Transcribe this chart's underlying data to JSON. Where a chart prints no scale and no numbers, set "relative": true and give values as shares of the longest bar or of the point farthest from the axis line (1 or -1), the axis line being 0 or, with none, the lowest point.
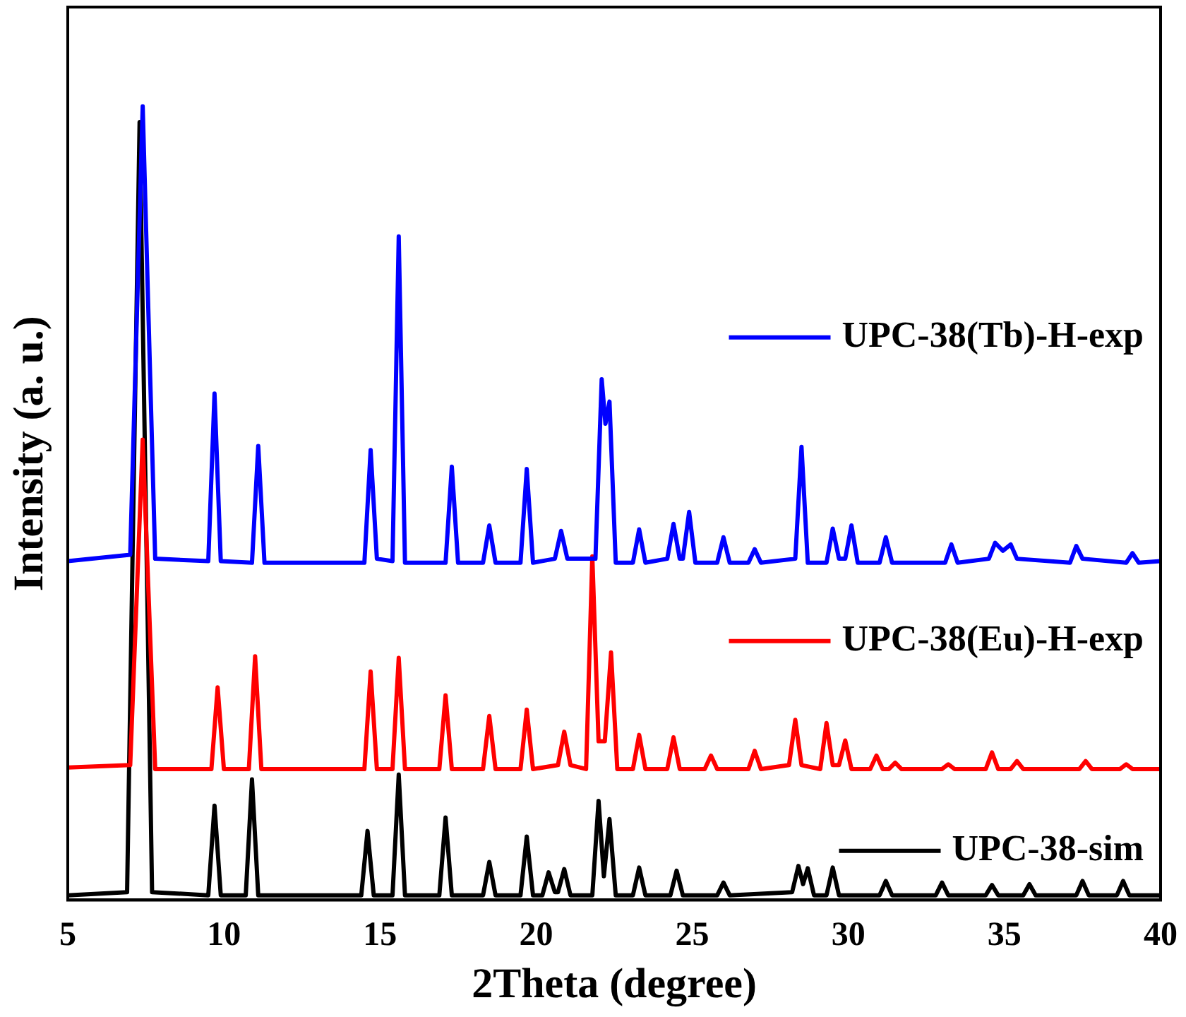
{
  "chart_data": {
    "type": "line",
    "relative": true,
    "xlabel": "2Theta (degree)",
    "ylabel": "Intensity (a. u.)",
    "xlim": [
      5,
      40
    ],
    "xticks": [
      5,
      10,
      15,
      20,
      25,
      30,
      35,
      40
    ],
    "grid": false,
    "legend": "right",
    "marker": "none",
    "line_style": "solid",
    "series": [
      {
        "name": "UPC-38(Tb)-H-exp",
        "color": "#0000ff",
        "x": [
          5,
          7.0,
          7.4,
          7.8,
          9.5,
          9.7,
          9.9,
          10.9,
          11.1,
          11.3,
          14.5,
          14.7,
          14.9,
          15.4,
          15.6,
          15.8,
          17.1,
          17.3,
          17.5,
          18.3,
          18.5,
          18.7,
          19.5,
          19.7,
          19.9,
          20.6,
          20.8,
          21.0,
          21.9,
          22.1,
          22.22,
          22.35,
          22.55,
          23.1,
          23.3,
          23.5,
          24.2,
          24.4,
          24.6,
          24.7,
          24.9,
          25.1,
          25.8,
          26.0,
          26.2,
          26.8,
          27.0,
          27.2,
          28.3,
          28.5,
          28.7,
          29.3,
          29.5,
          29.7,
          29.9,
          30.1,
          30.3,
          31.0,
          31.2,
          31.4,
          33.1,
          33.3,
          33.5,
          34.5,
          34.7,
          34.95,
          35.2,
          35.4,
          37.1,
          37.3,
          37.5,
          38.9,
          39.1,
          39.3,
          40
        ],
        "values": [
          0.427,
          0.435,
          1.0,
          0.43,
          0.427,
          0.638,
          0.427,
          0.425,
          0.572,
          0.425,
          0.425,
          0.567,
          0.43,
          0.427,
          0.836,
          0.425,
          0.425,
          0.546,
          0.425,
          0.425,
          0.472,
          0.425,
          0.425,
          0.543,
          0.425,
          0.43,
          0.465,
          0.43,
          0.43,
          0.656,
          0.6,
          0.628,
          0.425,
          0.425,
          0.467,
          0.425,
          0.43,
          0.474,
          0.43,
          0.43,
          0.489,
          0.425,
          0.425,
          0.457,
          0.425,
          0.425,
          0.442,
          0.425,
          0.43,
          0.571,
          0.425,
          0.425,
          0.468,
          0.43,
          0.43,
          0.472,
          0.425,
          0.425,
          0.457,
          0.425,
          0.425,
          0.448,
          0.425,
          0.43,
          0.45,
          0.44,
          0.448,
          0.43,
          0.425,
          0.446,
          0.43,
          0.425,
          0.437,
          0.425,
          0.427
        ]
      },
      {
        "name": "UPC-38(Eu)-H-exp",
        "color": "#ff0000",
        "x": [
          5,
          7.0,
          7.4,
          7.8,
          9.6,
          9.8,
          10.0,
          10.8,
          11.0,
          11.2,
          14.5,
          14.7,
          14.9,
          15.4,
          15.6,
          15.8,
          16.9,
          17.1,
          17.3,
          18.3,
          18.5,
          18.7,
          19.5,
          19.7,
          19.9,
          20.7,
          20.9,
          21.1,
          21.6,
          21.8,
          22.0,
          22.2,
          22.4,
          22.6,
          23.1,
          23.3,
          23.5,
          24.2,
          24.4,
          24.6,
          25.4,
          25.6,
          25.8,
          26.8,
          27.0,
          27.2,
          28.1,
          28.3,
          28.5,
          29.1,
          29.3,
          29.5,
          29.7,
          29.9,
          30.1,
          30.7,
          30.9,
          31.1,
          31.3,
          31.5,
          31.7,
          33.0,
          33.2,
          33.4,
          34.4,
          34.6,
          34.8,
          35.2,
          35.4,
          35.6,
          37.4,
          37.6,
          37.8,
          38.7,
          38.9,
          39.1,
          40
        ],
        "values": [
          0.167,
          0.17,
          0.58,
          0.165,
          0.165,
          0.268,
          0.165,
          0.165,
          0.307,
          0.165,
          0.165,
          0.288,
          0.165,
          0.165,
          0.305,
          0.165,
          0.165,
          0.258,
          0.165,
          0.165,
          0.232,
          0.165,
          0.165,
          0.24,
          0.165,
          0.17,
          0.212,
          0.17,
          0.165,
          0.433,
          0.2,
          0.2,
          0.312,
          0.165,
          0.165,
          0.208,
          0.165,
          0.165,
          0.205,
          0.165,
          0.165,
          0.182,
          0.165,
          0.165,
          0.188,
          0.165,
          0.17,
          0.227,
          0.17,
          0.165,
          0.223,
          0.17,
          0.17,
          0.201,
          0.165,
          0.165,
          0.182,
          0.165,
          0.165,
          0.173,
          0.165,
          0.165,
          0.171,
          0.165,
          0.165,
          0.186,
          0.165,
          0.165,
          0.175,
          0.165,
          0.165,
          0.175,
          0.165,
          0.165,
          0.171,
          0.165,
          0.165
        ]
      },
      {
        "name": "UPC-38-sim",
        "color": "#000000",
        "x": [
          5,
          6.9,
          7.3,
          7.7,
          9.5,
          9.7,
          9.9,
          10.7,
          10.9,
          11.1,
          14.4,
          14.6,
          14.8,
          15.4,
          15.6,
          15.8,
          16.9,
          17.1,
          17.3,
          18.3,
          18.5,
          18.7,
          19.5,
          19.7,
          19.9,
          20.2,
          20.4,
          20.6,
          20.7,
          20.9,
          21.1,
          21.8,
          22.0,
          22.17,
          22.35,
          22.55,
          23.1,
          23.3,
          23.5,
          24.3,
          24.5,
          24.7,
          25.8,
          26.0,
          26.2,
          28.2,
          28.4,
          28.55,
          28.7,
          28.9,
          29.3,
          29.5,
          29.7,
          31.0,
          31.2,
          31.4,
          32.8,
          33.0,
          33.2,
          34.4,
          34.6,
          34.8,
          35.6,
          35.8,
          36.0,
          37.3,
          37.5,
          37.7,
          38.6,
          38.8,
          39.0,
          40
        ],
        "values": [
          0.006,
          0.01,
          0.98,
          0.01,
          0.006,
          0.119,
          0.006,
          0.006,
          0.152,
          0.006,
          0.006,
          0.087,
          0.006,
          0.006,
          0.158,
          0.006,
          0.006,
          0.104,
          0.006,
          0.006,
          0.048,
          0.006,
          0.006,
          0.08,
          0.006,
          0.006,
          0.035,
          0.01,
          0.01,
          0.039,
          0.006,
          0.006,
          0.125,
          0.03,
          0.102,
          0.006,
          0.006,
          0.041,
          0.006,
          0.006,
          0.037,
          0.006,
          0.006,
          0.022,
          0.006,
          0.01,
          0.043,
          0.02,
          0.04,
          0.006,
          0.006,
          0.041,
          0.006,
          0.006,
          0.024,
          0.006,
          0.006,
          0.022,
          0.006,
          0.006,
          0.019,
          0.006,
          0.006,
          0.02,
          0.006,
          0.006,
          0.024,
          0.006,
          0.006,
          0.024,
          0.006,
          0.006
        ]
      }
    ]
  }
}
